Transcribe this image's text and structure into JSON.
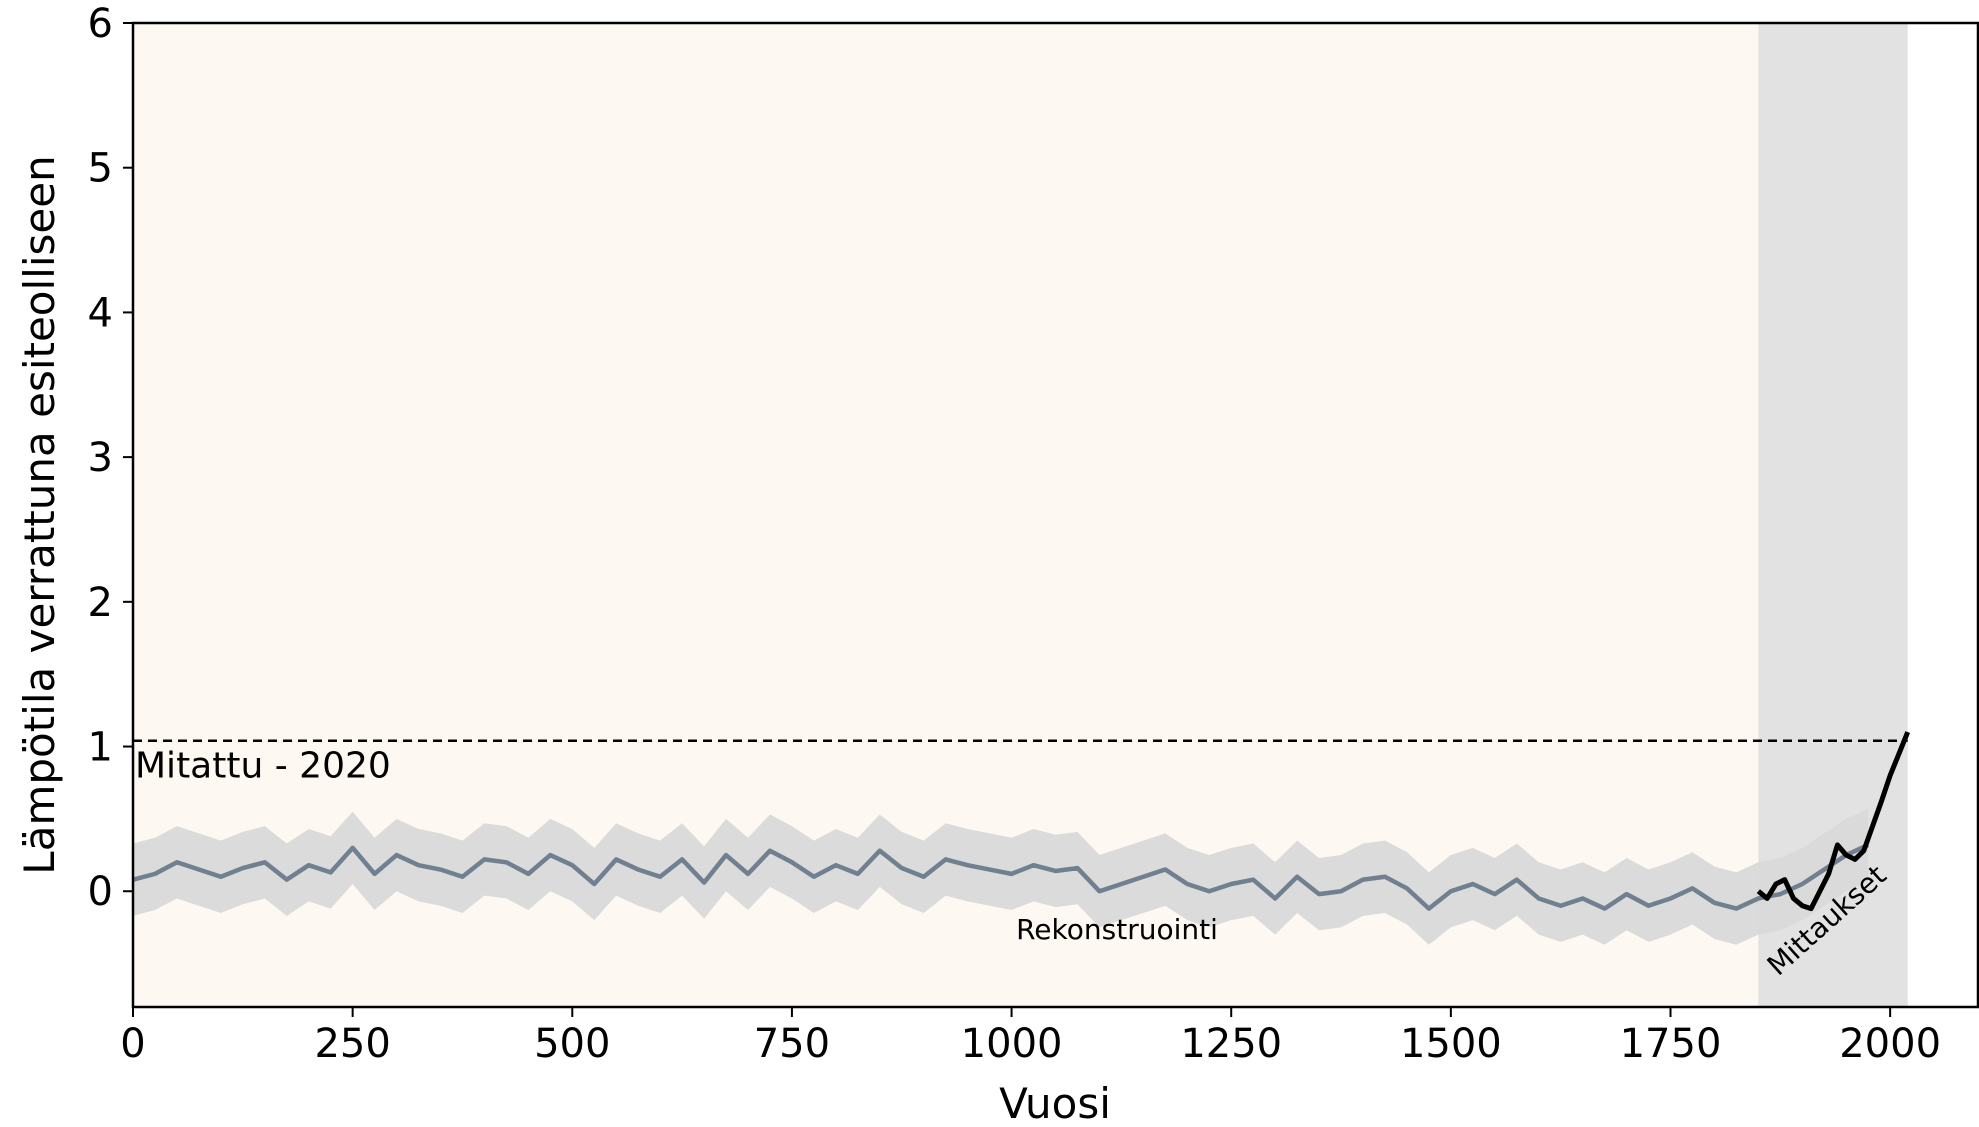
{
  "chart_data": {
    "type": "line",
    "title": "",
    "xlabel": "Vuosi",
    "ylabel": "Lämpötila verrattuna esiteolliseen",
    "xlim": [
      0,
      2100
    ],
    "ylim": [
      -0.8,
      6
    ],
    "x_ticks": [
      0,
      250,
      500,
      750,
      1000,
      1250,
      1500,
      1750,
      2000
    ],
    "y_ticks": [
      0,
      1,
      2,
      3,
      4,
      5,
      6
    ],
    "grid": false,
    "shaded_regions": [
      {
        "x_start": 0,
        "x_end": 1850,
        "color": "#fdf8f2"
      },
      {
        "x_start": 1850,
        "x_end": 2020,
        "color": "#e2e2e2"
      }
    ],
    "reference_line": {
      "y": 1.04,
      "style": "dashed",
      "color": "#000000",
      "label": "Mitattu - 2020"
    },
    "annotations": [
      {
        "text": "Rekonstruointi",
        "x": 1120,
        "y": -0.33
      },
      {
        "text": "Mittaukset",
        "x": 1935,
        "y": -0.25,
        "rotation": -42
      }
    ],
    "series": [
      {
        "name": "Rekonstruointi",
        "color": "#708090",
        "band_color": "#d9d9d9",
        "band_halfwidth": 0.25,
        "x": [
          0,
          25,
          50,
          75,
          100,
          125,
          150,
          175,
          200,
          225,
          250,
          275,
          300,
          325,
          350,
          375,
          400,
          425,
          450,
          475,
          500,
          525,
          550,
          575,
          600,
          625,
          650,
          675,
          700,
          725,
          750,
          775,
          800,
          825,
          850,
          875,
          900,
          925,
          950,
          975,
          1000,
          1025,
          1050,
          1075,
          1100,
          1125,
          1150,
          1175,
          1200,
          1225,
          1250,
          1275,
          1300,
          1325,
          1350,
          1375,
          1400,
          1425,
          1450,
          1475,
          1500,
          1525,
          1550,
          1575,
          1600,
          1625,
          1650,
          1675,
          1700,
          1725,
          1750,
          1775,
          1800,
          1825,
          1850,
          1875,
          1900,
          1925,
          1950,
          1975
        ],
        "y": [
          0.08,
          0.12,
          0.2,
          0.15,
          0.1,
          0.16,
          0.2,
          0.08,
          0.18,
          0.13,
          0.3,
          0.12,
          0.25,
          0.18,
          0.15,
          0.1,
          0.22,
          0.2,
          0.12,
          0.25,
          0.18,
          0.05,
          0.22,
          0.15,
          0.1,
          0.22,
          0.06,
          0.25,
          0.12,
          0.28,
          0.2,
          0.1,
          0.18,
          0.12,
          0.28,
          0.16,
          0.1,
          0.22,
          0.18,
          0.15,
          0.12,
          0.18,
          0.14,
          0.16,
          0.0,
          0.05,
          0.1,
          0.15,
          0.05,
          0.0,
          0.05,
          0.08,
          -0.05,
          0.1,
          -0.02,
          0.0,
          0.08,
          0.1,
          0.02,
          -0.12,
          0.0,
          0.05,
          -0.02,
          0.08,
          -0.05,
          -0.1,
          -0.05,
          -0.12,
          -0.02,
          -0.1,
          -0.05,
          0.02,
          -0.08,
          -0.12,
          -0.05,
          -0.02,
          0.05,
          0.15,
          0.25,
          0.32
        ]
      },
      {
        "name": "Mittaukset",
        "color": "#000000",
        "x": [
          1850,
          1860,
          1870,
          1880,
          1890,
          1900,
          1910,
          1920,
          1930,
          1940,
          1950,
          1960,
          1970,
          1980,
          1990,
          2000,
          2010,
          2020
        ],
        "y": [
          0.0,
          -0.05,
          0.05,
          0.08,
          -0.05,
          -0.1,
          -0.12,
          0.0,
          0.12,
          0.32,
          0.25,
          0.22,
          0.28,
          0.45,
          0.62,
          0.8,
          0.95,
          1.1
        ]
      }
    ]
  }
}
